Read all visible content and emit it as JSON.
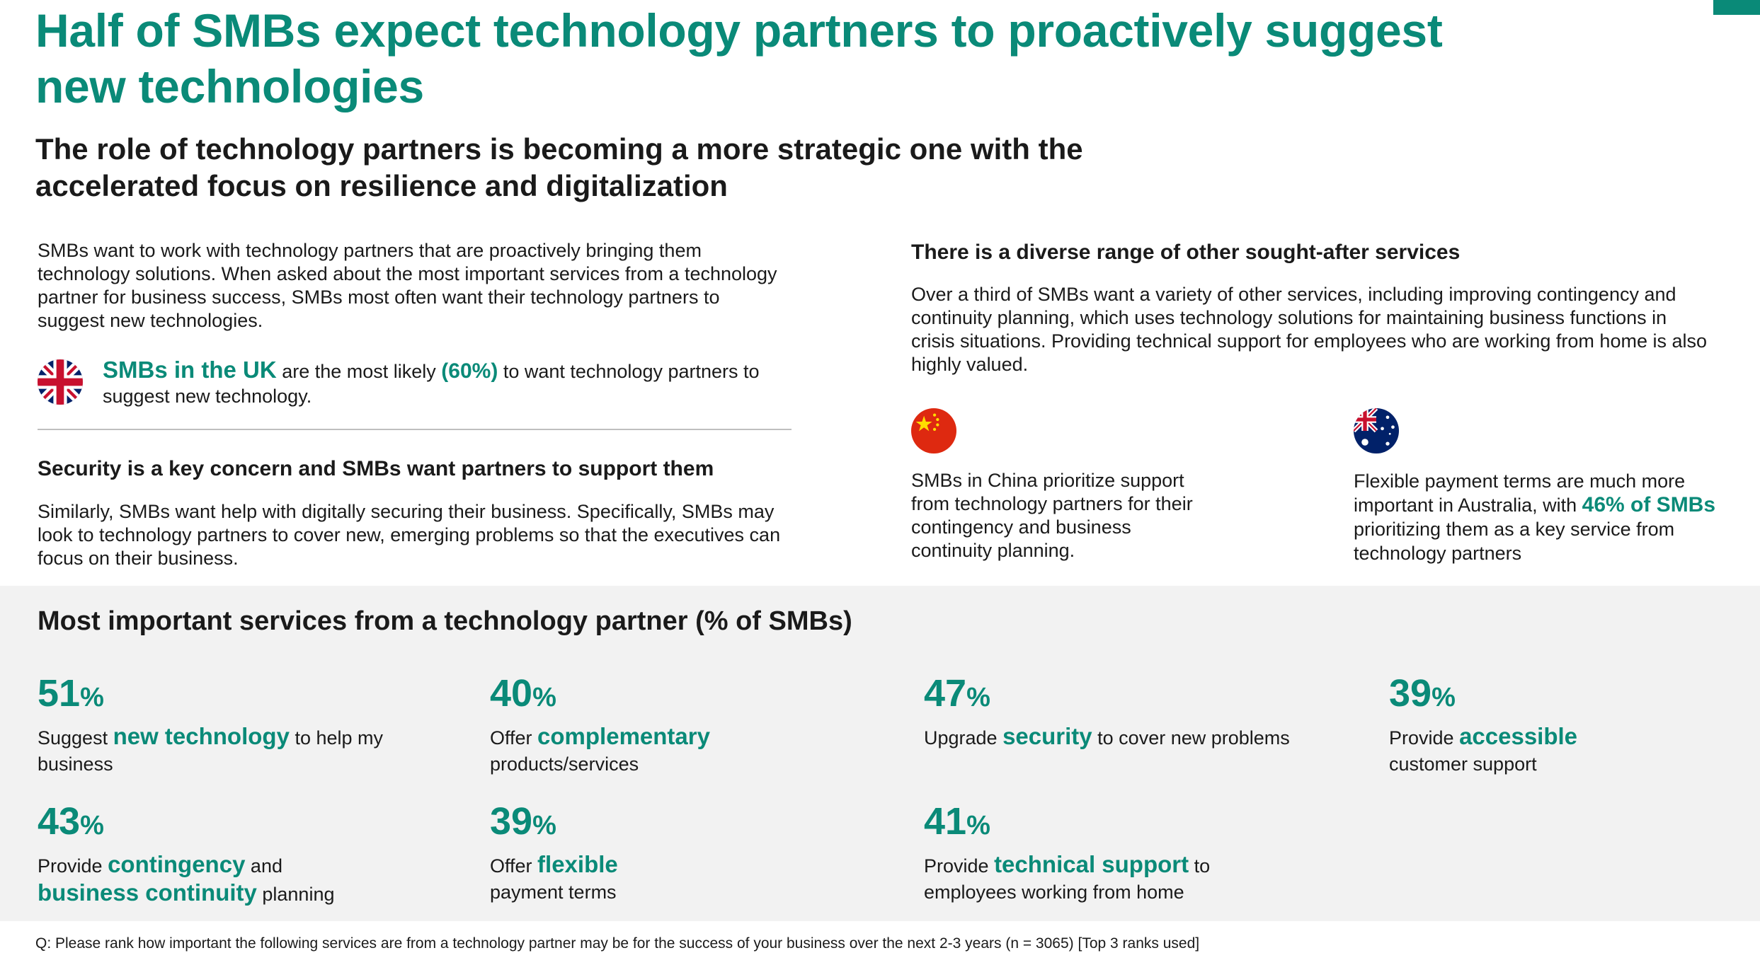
{
  "title": "Half of SMBs expect technology partners to proactively suggest new technologies",
  "subtitle": "The role of technology partners is becoming a more strategic one with the accelerated focus on resilience and digitalization",
  "intro": "SMBs want to work with technology partners that are proactively bringing them technology solutions. When asked about the most important services from a technology partner for business success, SMBs most often want their technology partners to suggest new technologies.",
  "uk_callout": {
    "lead": "SMBs in the UK",
    "mid": " are the most likely ",
    "pct": "(60%)",
    "tail": " to want technology partners to suggest new technology."
  },
  "security": {
    "heading": "Security is a key concern and SMBs want partners to support them",
    "body": "Similarly, SMBs want help with digitally securing their business. Specifically, SMBs may look to technology partners to cover new, emerging problems so that the executives can focus on their business."
  },
  "diverse": {
    "heading": "There is a diverse range of other sought-after services",
    "body": "Over a third of SMBs want a variety of other services, including improving contingency and continuity planning, which uses technology solutions for maintaining business functions in crisis situations. Providing technical support for employees who are working from home is also highly valued."
  },
  "china_callout": "SMBs in China prioritize support from technology partners for their contingency and business continuity planning.",
  "australia_callout": {
    "lead": "Flexible payment terms are much more important in Australia, with ",
    "highlight": "46% of SMBs",
    "tail": " prioritizing them as a key service from technology partners"
  },
  "services_panel": {
    "title": "Most important services from a technology partner (% of SMBs)",
    "stats": [
      {
        "value": "51",
        "unit": "%",
        "pre": "Suggest ",
        "kw": "new technology",
        "post": " to help my business"
      },
      {
        "value": "40",
        "unit": "%",
        "pre": "Offer ",
        "kw": "complementary",
        "post": " products/services"
      },
      {
        "value": "47",
        "unit": "%",
        "pre": "Upgrade ",
        "kw": "security",
        "post": " to cover new problems"
      },
      {
        "value": "39",
        "unit": "%",
        "pre": "Provide ",
        "kw": "accessible",
        "post": " customer support"
      },
      {
        "value": "43",
        "unit": "%",
        "pre": "Provide ",
        "kw": "contingency",
        "mid": " and ",
        "kw2": "business continuity",
        "post": " planning"
      },
      {
        "value": "39",
        "unit": "%",
        "pre": "Offer ",
        "kw": "flexible",
        "post": " payment terms"
      },
      {
        "value": "41",
        "unit": "%",
        "pre": "Provide ",
        "kw": "technical support",
        "post": " to employees working from home"
      }
    ]
  },
  "footnote": "Q: Please rank how important the following services are from a technology partner may be for the success of your business over the next 2-3 years (n = 3065) [Top 3 ranks used]",
  "colors": {
    "accent": "#0a8a78",
    "text": "#1a1a1a",
    "panel_bg": "#f2f2f2",
    "divider": "#bfbfbf"
  },
  "icons": [
    "uk-flag-icon",
    "china-flag-icon",
    "australia-flag-icon"
  ]
}
